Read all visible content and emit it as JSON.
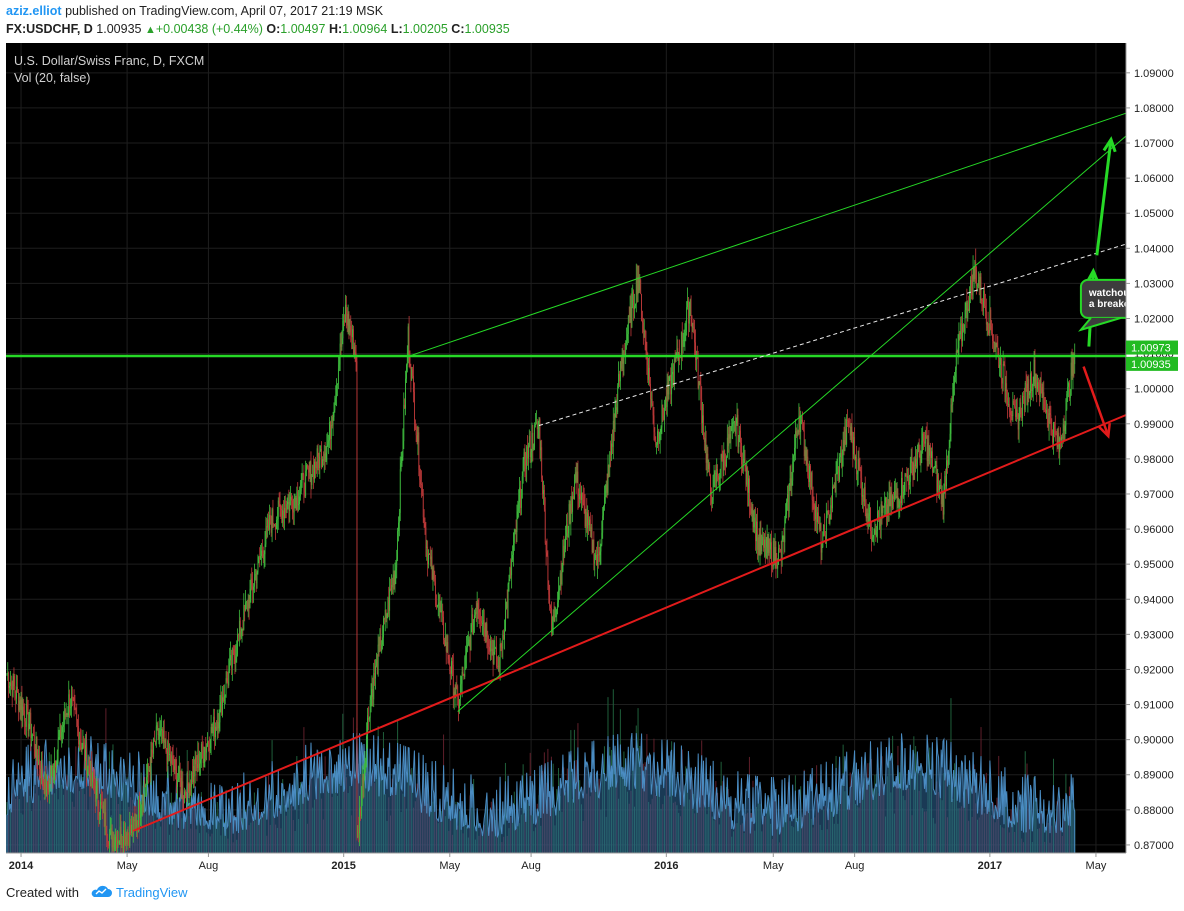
{
  "header": {
    "author": "aziz.elliot",
    "published_text": "published on TradingView.com, April 07, 2017 21:19 MSK",
    "symbol": "FX:USDCHF, D",
    "price": "1.00935",
    "change": "+0.00438 (+0.44%)",
    "o_label": "O:",
    "o_value": "1.00497",
    "h_label": "H:",
    "h_value": "1.00964",
    "l_label": "L:",
    "l_value": "1.00205",
    "c_label": "C:",
    "c_value": "1.00935"
  },
  "footer": {
    "created_with": "Created with",
    "brand": "TradingView"
  },
  "colors": {
    "background": "#000000",
    "bull": "#3fbf3f",
    "bear": "#c03a3a",
    "green_line": "#26d926",
    "red_line": "#e21b1b",
    "volume": "#2f6a9a",
    "axis_text": "#222222"
  },
  "chart_data": {
    "type": "line",
    "title": "U.S. Dollar/Swiss Franc, D, FXCM",
    "volume_label": "Vol (20, false)",
    "x_ticks": [
      "2014",
      "May",
      "Aug",
      "2015",
      "May",
      "Aug",
      "2016",
      "May",
      "Aug",
      "2017",
      "May"
    ],
    "y_ticks": [
      "1.09000",
      "1.08000",
      "1.07000",
      "1.06000",
      "1.05000",
      "1.04000",
      "1.03000",
      "1.02000",
      "1.01000",
      "1.00000",
      "0.99000",
      "0.98000",
      "0.97000",
      "0.96000",
      "0.95000",
      "0.94000",
      "0.93000",
      "0.92000",
      "0.91000",
      "0.90000",
      "0.89000",
      "0.88000",
      "0.87000"
    ],
    "ylim": [
      0.8677,
      1.0985
    ],
    "xlim": [
      "2013-12-15",
      "2017-06-04"
    ],
    "grid": true,
    "series": [
      {
        "x": "2013-12-16",
        "y": 0.919
      },
      {
        "x": "2014-01-10",
        "y": 0.905
      },
      {
        "x": "2014-01-30",
        "y": 0.885
      },
      {
        "x": "2014-02-25",
        "y": 0.912
      },
      {
        "x": "2014-03-20",
        "y": 0.89
      },
      {
        "x": "2014-04-12",
        "y": 0.872
      },
      {
        "x": "2014-05-08",
        "y": 0.874
      },
      {
        "x": "2014-06-05",
        "y": 0.902
      },
      {
        "x": "2014-07-05",
        "y": 0.885
      },
      {
        "x": "2014-08-10",
        "y": 0.905
      },
      {
        "x": "2014-09-10",
        "y": 0.935
      },
      {
        "x": "2014-10-10",
        "y": 0.962
      },
      {
        "x": "2014-11-10",
        "y": 0.97
      },
      {
        "x": "2014-12-15",
        "y": 0.985
      },
      {
        "x": "2015-01-03",
        "y": 1.022
      },
      {
        "x": "2015-01-15",
        "y": 1.01
      },
      {
        "x": "2015-01-16",
        "y": 0.87
      },
      {
        "x": "2015-01-30",
        "y": 0.91
      },
      {
        "x": "2015-03-01",
        "y": 0.95
      },
      {
        "x": "2015-03-15",
        "y": 1.015
      },
      {
        "x": "2015-04-05",
        "y": 0.955
      },
      {
        "x": "2015-05-10",
        "y": 0.91
      },
      {
        "x": "2015-06-01",
        "y": 0.94
      },
      {
        "x": "2015-06-25",
        "y": 0.92
      },
      {
        "x": "2015-07-25",
        "y": 0.98
      },
      {
        "x": "2015-08-10",
        "y": 0.99
      },
      {
        "x": "2015-08-24",
        "y": 0.93
      },
      {
        "x": "2015-09-20",
        "y": 0.975
      },
      {
        "x": "2015-10-15",
        "y": 0.95
      },
      {
        "x": "2015-11-10",
        "y": 1.005
      },
      {
        "x": "2015-11-30",
        "y": 1.032
      },
      {
        "x": "2015-12-20",
        "y": 0.985
      },
      {
        "x": "2016-01-20",
        "y": 1.015
      },
      {
        "x": "2016-01-28",
        "y": 1.025
      },
      {
        "x": "2016-02-20",
        "y": 0.97
      },
      {
        "x": "2016-03-20",
        "y": 0.99
      },
      {
        "x": "2016-04-15",
        "y": 0.955
      },
      {
        "x": "2016-05-10",
        "y": 0.952
      },
      {
        "x": "2016-05-30",
        "y": 0.993
      },
      {
        "x": "2016-06-25",
        "y": 0.955
      },
      {
        "x": "2016-07-25",
        "y": 0.99
      },
      {
        "x": "2016-08-20",
        "y": 0.96
      },
      {
        "x": "2016-09-20",
        "y": 0.97
      },
      {
        "x": "2016-10-20",
        "y": 0.985
      },
      {
        "x": "2016-11-09",
        "y": 0.968
      },
      {
        "x": "2016-11-25",
        "y": 1.01
      },
      {
        "x": "2016-12-15",
        "y": 1.034
      },
      {
        "x": "2017-01-05",
        "y": 1.015
      },
      {
        "x": "2017-01-30",
        "y": 0.99
      },
      {
        "x": "2017-02-20",
        "y": 1.005
      },
      {
        "x": "2017-03-20",
        "y": 0.983
      },
      {
        "x": "2017-04-07",
        "y": 1.0094
      }
    ],
    "annotations": {
      "callout": [
        "watchout for",
        "a breakout :D"
      ],
      "price_labels": [
        "1.00973",
        "1.00935"
      ]
    }
  }
}
